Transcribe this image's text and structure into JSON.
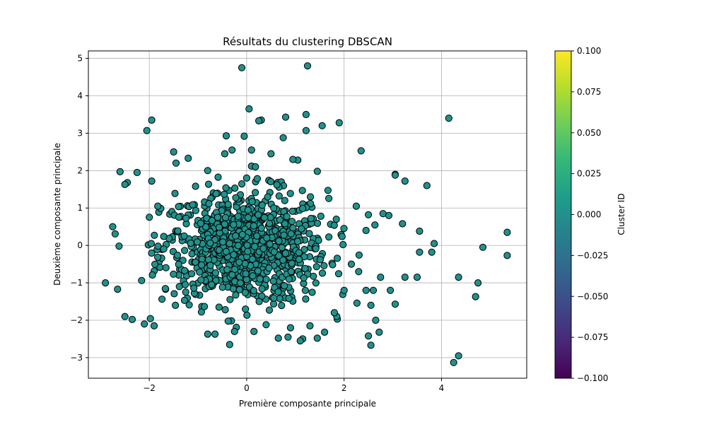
{
  "chart_data": {
    "type": "scatter",
    "title": "Résultats du clustering DBSCAN",
    "xlabel": "Première composante principale",
    "ylabel": "Deuxième composante principale",
    "xlim": [
      -3.25,
      5.75
    ],
    "ylim": [
      -3.55,
      5.2
    ],
    "xticks": [
      -2,
      0,
      2,
      4
    ],
    "xtick_labels": [
      "−2",
      "0",
      "2",
      "4"
    ],
    "yticks": [
      -3,
      -2,
      -1,
      0,
      1,
      2,
      3,
      4,
      5
    ],
    "ytick_labels": [
      "−3",
      "−2",
      "−1",
      "0",
      "1",
      "2",
      "3",
      "4",
      "5"
    ],
    "grid": true,
    "point_color": "#21918c",
    "point_edge_color": "#000000",
    "colorbar": {
      "label": "Cluster ID",
      "range": [
        -0.1,
        0.1
      ],
      "ticks": [
        0.1,
        0.075,
        0.05,
        0.025,
        0.0,
        -0.025,
        -0.05,
        -0.075,
        -0.1
      ],
      "tick_labels": [
        "0.100",
        "0.075",
        "0.050",
        "0.025",
        "0.000",
        "−0.025",
        "−0.050",
        "−0.075",
        "−0.100"
      ],
      "colormap": [
        "#440154",
        "#482878",
        "#3e4989",
        "#31688e",
        "#26828e",
        "#1f9e89",
        "#35b779",
        "#6ece58",
        "#b5de2b",
        "#fde725"
      ]
    },
    "outliers": [
      {
        "x": -0.1,
        "y": 4.75
      },
      {
        "x": 1.25,
        "y": 4.8
      },
      {
        "x": 0.05,
        "y": 3.65
      },
      {
        "x": 4.15,
        "y": 3.4
      },
      {
        "x": -1.95,
        "y": 3.35
      },
      {
        "x": -2.05,
        "y": 3.07
      },
      {
        "x": 1.22,
        "y": 3.5
      },
      {
        "x": 1.22,
        "y": 3.07
      },
      {
        "x": 1.9,
        "y": 3.28
      },
      {
        "x": 1.55,
        "y": 3.2
      },
      {
        "x": 0.8,
        "y": 3.43
      },
      {
        "x": 0.3,
        "y": 3.35
      },
      {
        "x": 0.25,
        "y": 3.33
      },
      {
        "x": 0.75,
        "y": 2.88
      },
      {
        "x": -0.05,
        "y": 2.92
      },
      {
        "x": -0.42,
        "y": 2.93
      },
      {
        "x": 2.35,
        "y": 2.53
      },
      {
        "x": 0.1,
        "y": 2.55
      },
      {
        "x": 0.5,
        "y": 2.45
      },
      {
        "x": -1.5,
        "y": 2.5
      },
      {
        "x": -1.2,
        "y": 2.33
      },
      {
        "x": 3.05,
        "y": 1.9
      },
      {
        "x": 3.05,
        "y": 1.88
      },
      {
        "x": 3.25,
        "y": 1.72
      },
      {
        "x": 3.7,
        "y": 1.6
      },
      {
        "x": 5.35,
        "y": 0.35
      },
      {
        "x": 5.35,
        "y": -0.27
      },
      {
        "x": 4.85,
        "y": -0.05
      },
      {
        "x": 3.85,
        "y": 0.05
      },
      {
        "x": 3.8,
        "y": -0.18
      },
      {
        "x": 3.55,
        "y": -0.18
      },
      {
        "x": 3.55,
        "y": 0.38
      },
      {
        "x": 3.5,
        "y": -0.85
      },
      {
        "x": 3.25,
        "y": -0.85
      },
      {
        "x": 3.05,
        "y": -1.57
      },
      {
        "x": 4.35,
        "y": -0.85
      },
      {
        "x": 4.75,
        "y": -1.0
      },
      {
        "x": 4.7,
        "y": -1.37
      },
      {
        "x": 4.35,
        "y": -2.95
      },
      {
        "x": 4.25,
        "y": -3.13
      },
      {
        "x": 2.65,
        "y": -2.0
      },
      {
        "x": 2.72,
        "y": -2.32
      },
      {
        "x": 2.5,
        "y": -2.42
      },
      {
        "x": 2.55,
        "y": -2.67
      },
      {
        "x": 2.55,
        "y": -1.6
      },
      {
        "x": -0.35,
        "y": -2.65
      },
      {
        "x": 1.15,
        "y": -2.5
      },
      {
        "x": 1.1,
        "y": -2.55
      },
      {
        "x": 0.85,
        "y": -2.45
      },
      {
        "x": 1.45,
        "y": -2.48
      },
      {
        "x": -2.9,
        "y": -1.0
      },
      {
        "x": -2.75,
        "y": 0.5
      },
      {
        "x": -2.6,
        "y": 1.97
      },
      {
        "x": -2.25,
        "y": 1.95
      },
      {
        "x": -1.95,
        "y": 1.72
      },
      {
        "x": -2.45,
        "y": 1.68
      },
      {
        "x": -2.5,
        "y": 1.63
      },
      {
        "x": -2.7,
        "y": 0.31
      },
      {
        "x": -2.62,
        "y": -0.02
      },
      {
        "x": -2.65,
        "y": -1.17
      },
      {
        "x": -2.5,
        "y": -1.9
      },
      {
        "x": -2.35,
        "y": -1.98
      },
      {
        "x": -2.1,
        "y": -2.1
      },
      {
        "x": -1.9,
        "y": -2.15
      },
      {
        "x": -0.8,
        "y": -2.37
      },
      {
        "x": -0.65,
        "y": -2.37
      },
      {
        "x": -0.25,
        "y": -2.3
      },
      {
        "x": 0.15,
        "y": -2.3
      },
      {
        "x": 0.4,
        "y": -2.12
      },
      {
        "x": 0.65,
        "y": -2.48
      },
      {
        "x": 0.9,
        "y": -2.2
      },
      {
        "x": 1.3,
        "y": -2.15
      },
      {
        "x": 1.6,
        "y": -2.32
      },
      {
        "x": 1.85,
        "y": -1.9
      },
      {
        "x": 0.62,
        "y": 1.62
      },
      {
        "x": 0.0,
        "y": 1.8
      },
      {
        "x": 1.05,
        "y": 2.28
      },
      {
        "x": 0.95,
        "y": 2.3
      },
      {
        "x": 0.1,
        "y": 2.12
      },
      {
        "x": 0.18,
        "y": 2.1
      },
      {
        "x": 1.45,
        "y": 1.98
      },
      {
        "x": -0.8,
        "y": 2.0
      },
      {
        "x": -0.3,
        "y": 2.55
      },
      {
        "x": -0.45,
        "y": 2.45
      },
      {
        "x": -1.45,
        "y": 2.2
      },
      {
        "x": 2.8,
        "y": 0.85
      },
      {
        "x": 2.92,
        "y": 0.8
      },
      {
        "x": 3.2,
        "y": 0.58
      },
      {
        "x": 2.5,
        "y": 0.82
      },
      {
        "x": 2.25,
        "y": 1.05
      },
      {
        "x": 2.45,
        "y": 0.4
      },
      {
        "x": 2.3,
        "y": -0.7
      },
      {
        "x": 2.15,
        "y": -0.5
      },
      {
        "x": 2.45,
        "y": -1.2
      },
      {
        "x": 2.75,
        "y": -0.85
      },
      {
        "x": 2.95,
        "y": -1.2
      },
      {
        "x": 2.6,
        "y": -1.2
      },
      {
        "x": 2.0,
        "y": -1.2
      },
      {
        "x": 1.8,
        "y": -1.8
      }
    ],
    "cluster_cloud": {
      "description_count": 900,
      "center": [
        -0.05,
        -0.05
      ],
      "std": [
        0.85,
        0.75
      ],
      "xrange": [
        -2.2,
        3.0
      ],
      "yrange": [
        -2.2,
        2.0
      ]
    }
  }
}
